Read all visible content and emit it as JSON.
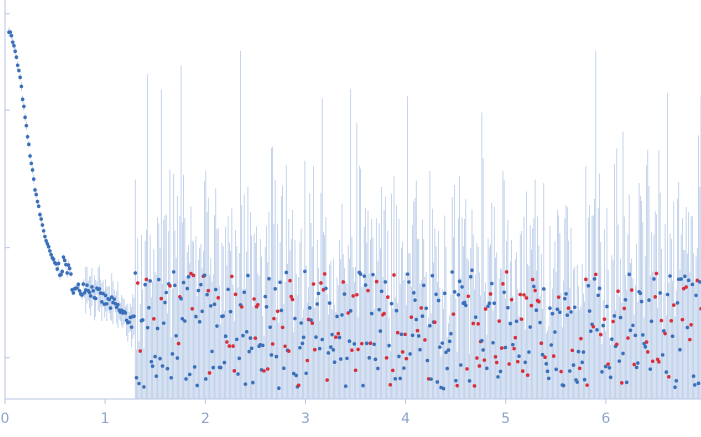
{
  "chart_data": {
    "type": "scatter",
    "title": "",
    "xlabel": "",
    "ylabel": "",
    "xlim": [
      0,
      6.95
    ],
    "y_scale": "log",
    "ylim_log10": [
      -0.6,
      2.3
    ],
    "x_ticks": [
      "0",
      "1",
      "2",
      "3",
      "4",
      "5",
      "6"
    ],
    "y_tick_log10": [
      -0.3,
      0.5,
      1.5,
      2.2
    ],
    "grid": false,
    "legend": "none",
    "colors": {
      "axis": "#b8c6e6",
      "tick_label": "#8fa3c9",
      "positive_point": "#3a6fba",
      "negative_point": "#d6303c",
      "error_bar": "#a9c0e3"
    },
    "series": [
      {
        "x": [
          0.05,
          0.1,
          0.15,
          0.2,
          0.25,
          0.3,
          0.35,
          0.4,
          0.45,
          0.5,
          0.55,
          0.6,
          0.65,
          0.7,
          0.8,
          0.9,
          1.0,
          1.1,
          1.2,
          1.3,
          1.4,
          1.6,
          1.8,
          2.0,
          2.4,
          2.8,
          3.2,
          3.6,
          4.0,
          4.4,
          4.8,
          5.2,
          5.6,
          6.0,
          6.4,
          6.8
        ],
        "values": [
          120,
          85,
          55,
          28,
          15,
          8.5,
          5.5,
          3.8,
          2.9,
          2.4,
          2.2,
          2.5,
          2.0,
          1.5,
          1.7,
          1.5,
          1.3,
          1.2,
          1.0,
          0.9,
          0.5,
          0.7,
          0.45,
          0.4,
          0.3,
          0.3,
          0.25,
          0.3,
          0.25,
          0.2,
          0.3,
          0.25,
          0.2,
          0.3,
          0.25,
          0.25
        ]
      }
    ]
  }
}
